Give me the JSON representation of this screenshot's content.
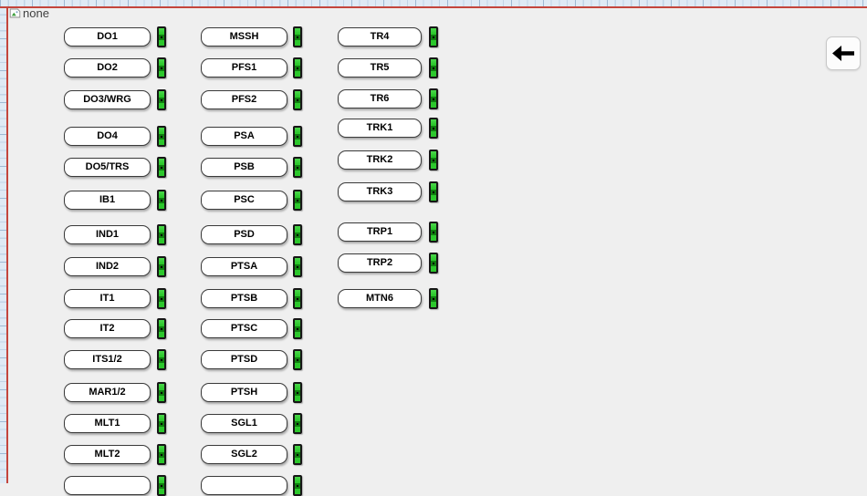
{
  "page": {
    "background_image_alt": "none"
  },
  "toolbar": {
    "back_icon": "left-arrow"
  },
  "colors": {
    "content_background": "#EFEFEF",
    "ruler_background": "#DFEAF5",
    "ruler_tick": "#9FB9D3",
    "frame_red": "#C4463D",
    "button_background": "#FFFFFF",
    "button_border": "#3A3A3A",
    "button_text": "#000000",
    "indicator_green": "#2CC72C",
    "indicator_handle": "#0F7E0F"
  },
  "columns": [
    {
      "name": "column-1",
      "items": [
        {
          "label": "DO1",
          "indicator": "green"
        },
        {
          "label": "DO2",
          "indicator": "green"
        },
        {
          "label": "DO3/WRG",
          "indicator": "green"
        },
        {
          "label": "DO4",
          "indicator": "green"
        },
        {
          "label": "DO5/TRS",
          "indicator": "green"
        },
        {
          "label": "IB1",
          "indicator": "green"
        },
        {
          "label": "IND1",
          "indicator": "green"
        },
        {
          "label": "IND2",
          "indicator": "green"
        },
        {
          "label": "IT1",
          "indicator": "green"
        },
        {
          "label": "IT2",
          "indicator": "green"
        },
        {
          "label": "ITS1/2",
          "indicator": "green"
        },
        {
          "label": "MAR1/2",
          "indicator": "green"
        },
        {
          "label": "MLT1",
          "indicator": "green"
        },
        {
          "label": "MLT2",
          "indicator": "green"
        },
        {
          "label": "",
          "indicator": "green"
        }
      ]
    },
    {
      "name": "column-2",
      "items": [
        {
          "label": "MSSH",
          "indicator": "green"
        },
        {
          "label": "PFS1",
          "indicator": "green"
        },
        {
          "label": "PFS2",
          "indicator": "green"
        },
        {
          "label": "PSA",
          "indicator": "green"
        },
        {
          "label": "PSB",
          "indicator": "green"
        },
        {
          "label": "PSC",
          "indicator": "green"
        },
        {
          "label": "PSD",
          "indicator": "green"
        },
        {
          "label": "PTSA",
          "indicator": "green"
        },
        {
          "label": "PTSB",
          "indicator": "green"
        },
        {
          "label": "PTSC",
          "indicator": "green"
        },
        {
          "label": "PTSD",
          "indicator": "green"
        },
        {
          "label": "PTSH",
          "indicator": "green"
        },
        {
          "label": "SGL1",
          "indicator": "green"
        },
        {
          "label": "SGL2",
          "indicator": "green"
        },
        {
          "label": "",
          "indicator": "green"
        }
      ]
    },
    {
      "name": "column-3",
      "items": [
        {
          "label": "TR4",
          "indicator": "green"
        },
        {
          "label": "TR5",
          "indicator": "green"
        },
        {
          "label": "TR6",
          "indicator": "green"
        },
        {
          "label": "TRK1",
          "indicator": "green"
        },
        {
          "label": "TRK2",
          "indicator": "green"
        },
        {
          "label": "TRK3",
          "indicator": "green"
        },
        {
          "label": "TRP1",
          "indicator": "green"
        },
        {
          "label": "TRP2",
          "indicator": "green"
        },
        {
          "label": "MTN6",
          "indicator": "green"
        }
      ]
    }
  ]
}
